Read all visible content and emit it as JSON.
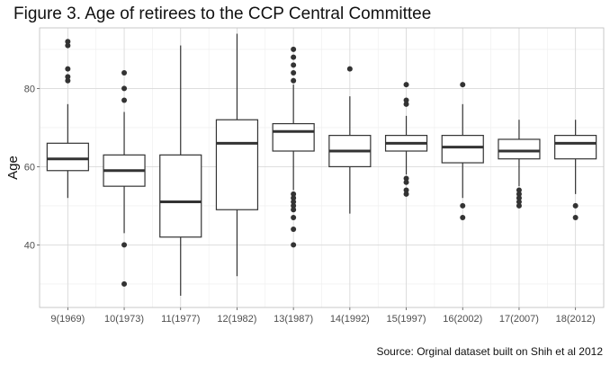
{
  "title": "Figure 3. Age of retirees to the CCP Central Committee",
  "caption": "Source: Orginal dataset built on Shih et al 2012",
  "chart_data": {
    "type": "boxplot",
    "title": "Figure 3. Age of retirees to the CCP Central Committee",
    "xlabel": "",
    "ylabel": "Age",
    "ylim": [
      24,
      95.5
    ],
    "yticks": [
      40,
      60,
      80
    ],
    "grid": true,
    "categories": [
      "9(1969)",
      "10(1973)",
      "11(1977)",
      "12(1982)",
      "13(1987)",
      "14(1992)",
      "15(1997)",
      "16(2002)",
      "17(2007)",
      "18(2012)"
    ],
    "boxes": [
      {
        "category": "9(1969)",
        "min": 52,
        "q1": 59,
        "median": 62,
        "q3": 66,
        "max": 76,
        "outliers": [
          92,
          91,
          85,
          83,
          82
        ]
      },
      {
        "category": "10(1973)",
        "min": 43,
        "q1": 55,
        "median": 59,
        "q3": 63,
        "max": 74,
        "outliers": [
          84,
          80,
          77,
          40,
          30
        ]
      },
      {
        "category": "11(1977)",
        "min": 27,
        "q1": 42,
        "median": 51,
        "q3": 63,
        "max": 91,
        "outliers": []
      },
      {
        "category": "12(1982)",
        "min": 32,
        "q1": 49,
        "median": 66,
        "q3": 72,
        "max": 94,
        "outliers": []
      },
      {
        "category": "13(1987)",
        "min": 54,
        "q1": 64,
        "median": 69,
        "q3": 71,
        "max": 81,
        "outliers": [
          90,
          88,
          86,
          84,
          82,
          53,
          52,
          51,
          50,
          49,
          47,
          44,
          40
        ]
      },
      {
        "category": "14(1992)",
        "min": 48,
        "q1": 60,
        "median": 64,
        "q3": 68,
        "max": 78,
        "outliers": [
          85
        ]
      },
      {
        "category": "15(1997)",
        "min": 58,
        "q1": 64,
        "median": 66,
        "q3": 68,
        "max": 73,
        "outliers": [
          81,
          77,
          76,
          57,
          56,
          54,
          53
        ]
      },
      {
        "category": "16(2002)",
        "min": 52,
        "q1": 61,
        "median": 65,
        "q3": 68,
        "max": 76,
        "outliers": [
          81,
          50,
          47
        ]
      },
      {
        "category": "17(2007)",
        "min": 55,
        "q1": 62,
        "median": 64,
        "q3": 67,
        "max": 72,
        "outliers": [
          54,
          53,
          52,
          51,
          50
        ]
      },
      {
        "category": "18(2012)",
        "min": 53,
        "q1": 62,
        "median": 66,
        "q3": 68,
        "max": 72,
        "outliers": [
          50,
          47
        ]
      }
    ],
    "colors": {
      "panel_background": "#ffffff",
      "grid_major": "#d9d9d9",
      "grid_minor": "#eeeeee",
      "panel_border": "#bdbdbd",
      "box_stroke": "#333333",
      "median": "#333333",
      "outlier": "#333333",
      "tick_text": "#4d4d4d"
    }
  }
}
